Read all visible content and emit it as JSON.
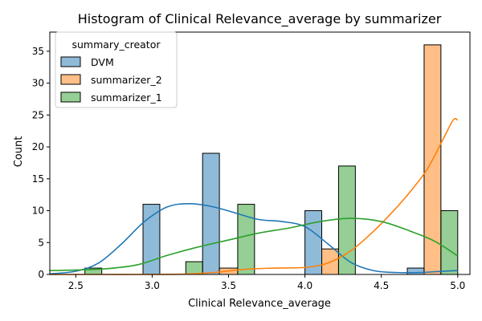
{
  "chart_data": {
    "type": "bar",
    "title": "Histogram of Clinical Relevance_average by summarizer",
    "xlabel": "Clinical Relevance_average",
    "ylabel": "Count",
    "xlim": [
      2.33,
      5.08
    ],
    "ylim": [
      0,
      38
    ],
    "x_ticks": [
      "2.5",
      "3.0",
      "3.5",
      "4.0",
      "4.5",
      "5.0"
    ],
    "y_ticks": [
      "0",
      "5",
      "10",
      "15",
      "20",
      "25",
      "30",
      "35"
    ],
    "bin_edges": [
      2.444,
      2.667,
      2.889,
      3.111,
      3.333,
      3.556,
      3.778,
      4.0,
      4.222,
      4.444,
      4.667,
      4.889,
      5.111
    ],
    "grid": false,
    "legend": {
      "title": "summary_creator",
      "position": "top-left"
    },
    "series": [
      {
        "name": "DVM",
        "color": "#1f77b4",
        "bars": [
          {
            "x0": 2.94,
            "x1": 3.05,
            "value": 11
          },
          {
            "x0": 3.33,
            "x1": 3.44,
            "value": 19
          },
          {
            "x0": 4.0,
            "x1": 4.11,
            "value": 10
          },
          {
            "x0": 4.67,
            "x1": 4.78,
            "value": 1
          }
        ],
        "kde_x": [
          2.33,
          2.5,
          2.65,
          2.8,
          2.95,
          3.1,
          3.25,
          3.4,
          3.55,
          3.7,
          3.85,
          4.0,
          4.15,
          4.3,
          4.45,
          4.6,
          4.75,
          4.9,
          5.0
        ],
        "kde_y": [
          0.1,
          0.5,
          1.8,
          4.8,
          8.3,
          10.6,
          11.1,
          10.6,
          9.6,
          8.6,
          8.3,
          7.5,
          4.8,
          1.9,
          0.6,
          0.3,
          0.3,
          0.5,
          0.6
        ]
      },
      {
        "name": "summarizer_2",
        "color": "#ff7f0e",
        "bars": [
          {
            "x0": 3.44,
            "x1": 3.56,
            "value": 1
          },
          {
            "x0": 4.11,
            "x1": 4.22,
            "value": 4
          },
          {
            "x0": 4.78,
            "x1": 4.89,
            "value": 36
          }
        ],
        "kde_x": [
          2.33,
          2.6,
          2.9,
          3.2,
          3.4,
          3.6,
          3.8,
          4.0,
          4.15,
          4.3,
          4.45,
          4.6,
          4.7,
          4.8,
          4.9,
          4.97,
          5.0
        ],
        "kde_y": [
          0,
          0,
          0,
          0.05,
          0.3,
          0.8,
          1.0,
          1.1,
          1.8,
          3.7,
          6.8,
          10.5,
          13.3,
          16.5,
          21.0,
          24.2,
          24.2
        ]
      },
      {
        "name": "summarizer_1",
        "color": "#2ca02c",
        "bars": [
          {
            "x0": 2.56,
            "x1": 2.67,
            "value": 1
          },
          {
            "x0": 3.22,
            "x1": 3.33,
            "value": 2
          },
          {
            "x0": 3.56,
            "x1": 3.67,
            "value": 11
          },
          {
            "x0": 4.22,
            "x1": 4.33,
            "value": 17
          },
          {
            "x0": 4.89,
            "x1": 5.0,
            "value": 10
          }
        ],
        "kde_x": [
          2.33,
          2.5,
          2.7,
          2.9,
          3.1,
          3.3,
          3.5,
          3.7,
          3.9,
          4.1,
          4.3,
          4.5,
          4.7,
          4.85,
          5.0
        ],
        "kde_y": [
          0.6,
          0.7,
          0.9,
          1.5,
          3.0,
          4.3,
          5.4,
          6.5,
          7.3,
          8.3,
          8.8,
          8.3,
          6.7,
          5.2,
          2.9
        ]
      }
    ]
  }
}
